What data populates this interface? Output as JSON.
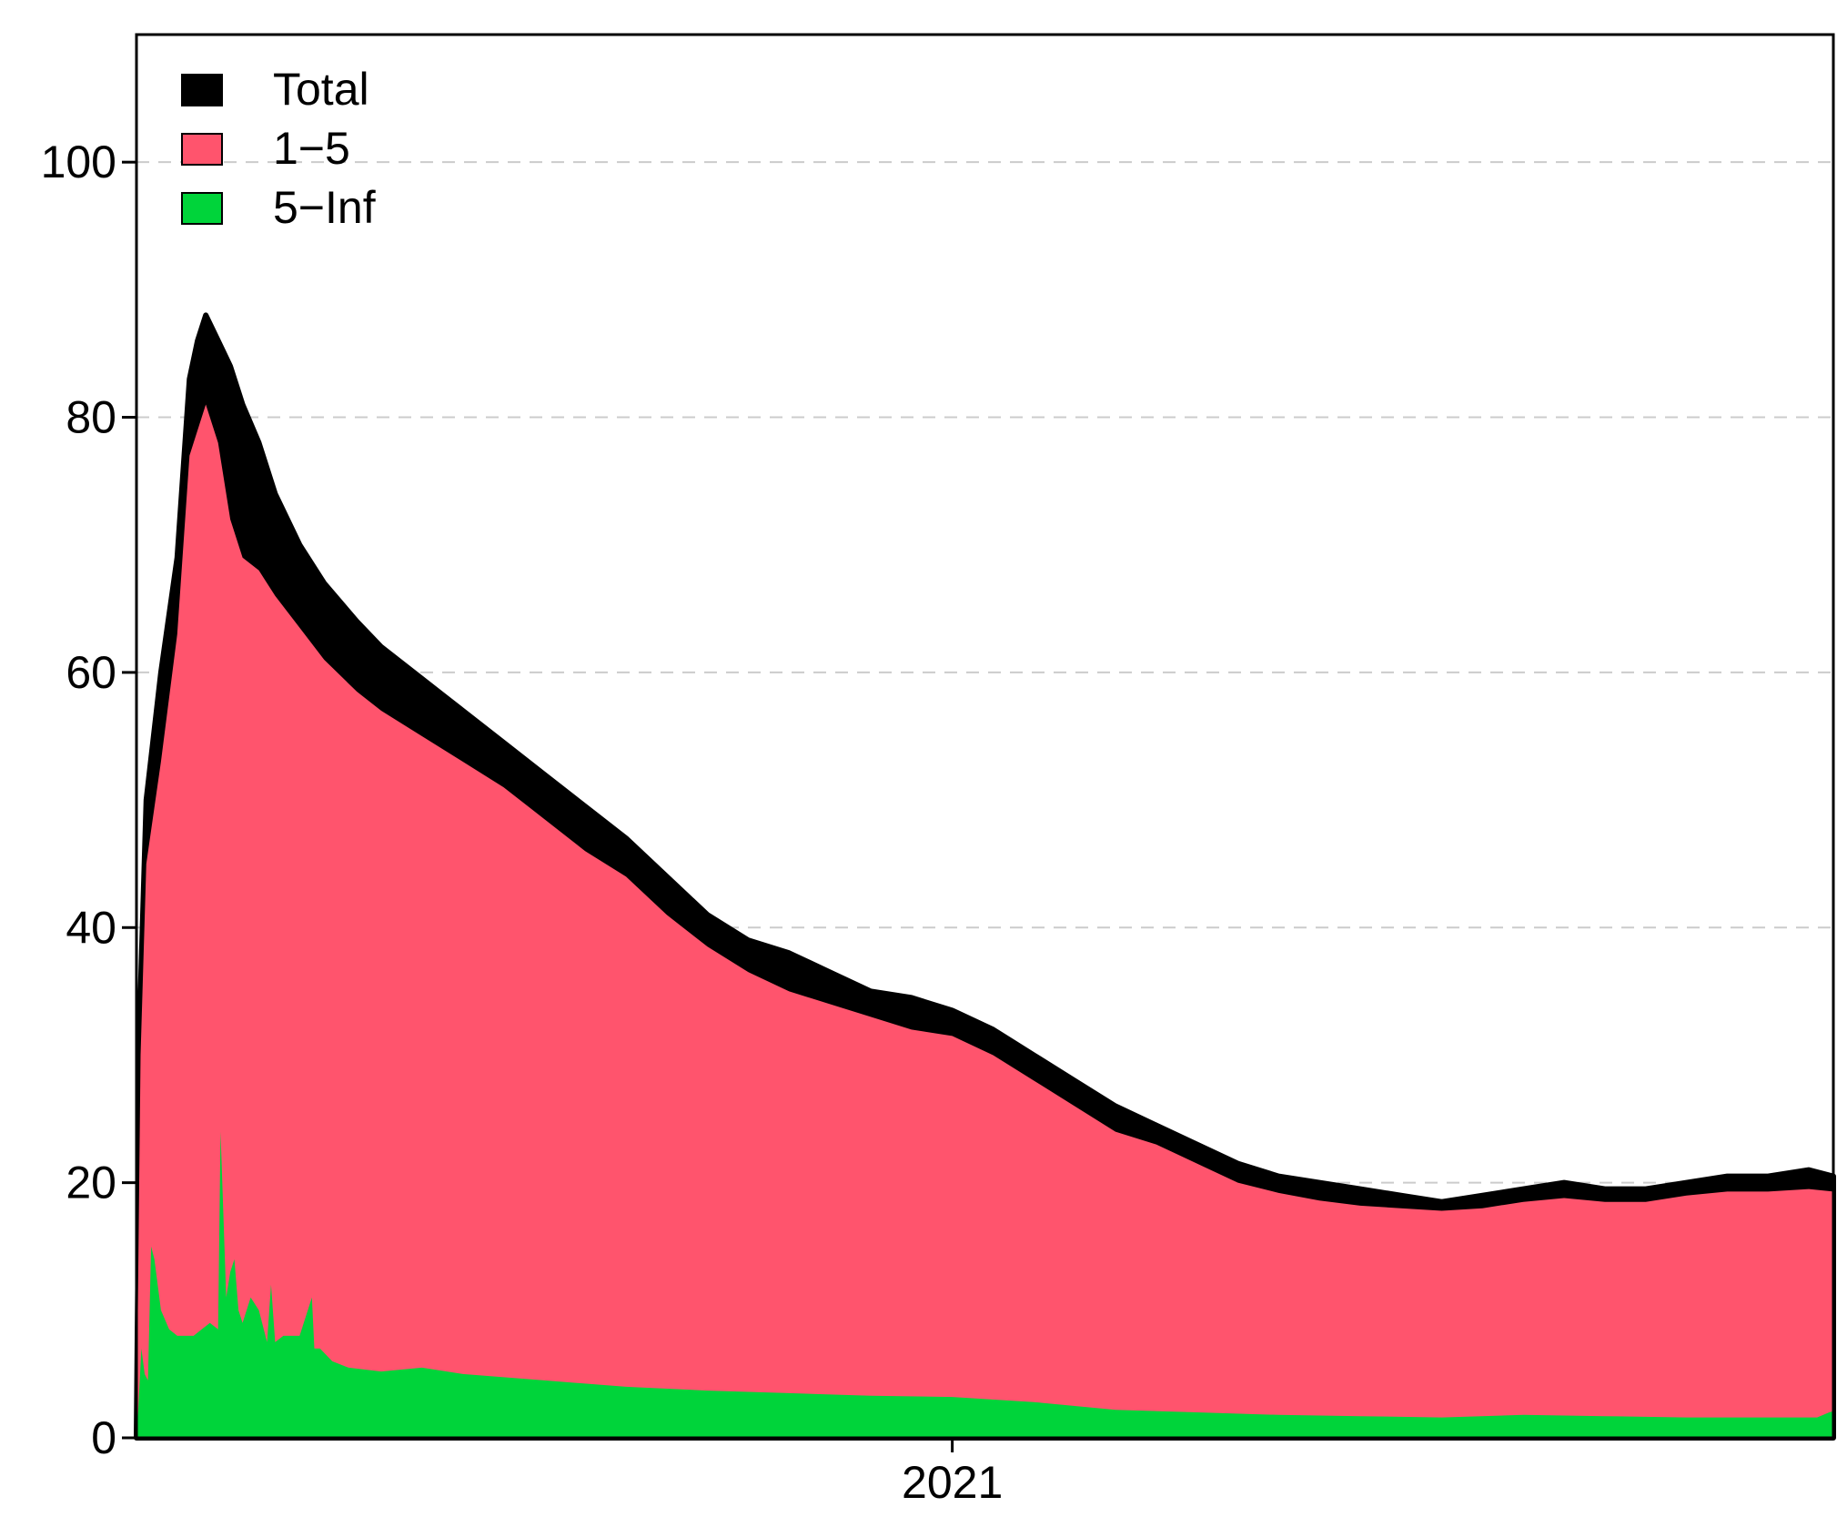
{
  "chart_data": {
    "type": "area",
    "stacked": false,
    "title": "",
    "xlabel": "",
    "ylabel": "",
    "ylim": [
      0,
      110
    ],
    "yticks": [
      0,
      20,
      40,
      60,
      80,
      100
    ],
    "xtick_labels": [
      "2021"
    ],
    "grid": "horizontal dashed",
    "legend": {
      "position": "top-left",
      "entries": [
        "Total",
        "1−5",
        "5−Inf"
      ]
    },
    "x_domain": [
      2020.0,
      2022.08
    ],
    "x_2021": 2021.0,
    "series": [
      {
        "name": "Total",
        "color": "#000000",
        "x": [
          2020.0,
          2020.005,
          2020.012,
          2020.03,
          2020.05,
          2020.065,
          2020.075,
          2020.085,
          2020.1,
          2020.115,
          2020.13,
          2020.15,
          2020.17,
          2020.2,
          2020.23,
          2020.27,
          2020.3,
          2020.35,
          2020.4,
          2020.45,
          2020.5,
          2020.55,
          2020.6,
          2020.65,
          2020.7,
          2020.75,
          2020.8,
          2020.85,
          2020.9,
          2020.95,
          2021.0,
          2021.05,
          2021.1,
          2021.15,
          2021.2,
          2021.25,
          2021.3,
          2021.35,
          2021.4,
          2021.45,
          2021.5,
          2021.55,
          2021.6,
          2021.65,
          2021.7,
          2021.75,
          2021.8,
          2021.85,
          2021.9,
          2021.95,
          2022.0,
          2022.05,
          2022.08
        ],
        "values": [
          0,
          35,
          50,
          60,
          69,
          83,
          86,
          88,
          86,
          84,
          81,
          78,
          74,
          70,
          67,
          64,
          62,
          59.5,
          57,
          54.5,
          52,
          49.5,
          47,
          44,
          41,
          39,
          38,
          36.5,
          35,
          34.5,
          33.5,
          32,
          30,
          28,
          26,
          24.5,
          23,
          21.5,
          20.5,
          20,
          19.5,
          19,
          18.5,
          19,
          19.5,
          20,
          19.5,
          19.5,
          20,
          20.5,
          20.5,
          21,
          20.5
        ]
      },
      {
        "name": "1−5",
        "color": "#ff546d",
        "x": [
          2020.0,
          2020.005,
          2020.012,
          2020.03,
          2020.05,
          2020.065,
          2020.075,
          2020.085,
          2020.1,
          2020.115,
          2020.13,
          2020.15,
          2020.17,
          2020.2,
          2020.23,
          2020.27,
          2020.3,
          2020.35,
          2020.4,
          2020.45,
          2020.5,
          2020.55,
          2020.6,
          2020.65,
          2020.7,
          2020.75,
          2020.8,
          2020.85,
          2020.9,
          2020.95,
          2021.0,
          2021.05,
          2021.1,
          2021.15,
          2021.2,
          2021.25,
          2021.3,
          2021.35,
          2021.4,
          2021.45,
          2021.5,
          2021.55,
          2021.6,
          2021.65,
          2021.7,
          2021.75,
          2021.8,
          2021.85,
          2021.9,
          2021.95,
          2022.0,
          2022.05,
          2022.08
        ],
        "values": [
          0,
          30,
          45,
          53,
          63,
          77,
          79,
          81,
          78,
          72,
          69,
          68,
          66,
          63.5,
          61,
          58.5,
          57,
          55,
          53,
          51,
          48.5,
          46,
          44,
          41,
          38.5,
          36.5,
          35,
          34,
          33,
          32,
          31.5,
          30,
          28,
          26,
          24,
          23,
          21.5,
          20,
          19.2,
          18.6,
          18.2,
          18,
          17.8,
          18,
          18.5,
          18.8,
          18.5,
          18.5,
          19,
          19.3,
          19.3,
          19.5,
          19.3
        ]
      },
      {
        "name": "5−Inf",
        "color": "#00d43a",
        "x": [
          2020.0,
          2020.002,
          2020.006,
          2020.01,
          2020.014,
          2020.018,
          2020.022,
          2020.03,
          2020.04,
          2020.05,
          2020.07,
          2020.08,
          2020.09,
          2020.1,
          2020.103,
          2020.11,
          2020.115,
          2020.12,
          2020.125,
          2020.13,
          2020.14,
          2020.15,
          2020.16,
          2020.165,
          2020.17,
          2020.18,
          2020.2,
          2020.215,
          2020.218,
          2020.225,
          2020.24,
          2020.26,
          2020.3,
          2020.35,
          2020.4,
          2020.5,
          2020.6,
          2020.7,
          2020.8,
          2020.9,
          2021.0,
          2021.1,
          2021.2,
          2021.3,
          2021.4,
          2021.5,
          2021.6,
          2021.7,
          2021.8,
          2021.9,
          2022.0,
          2022.06,
          2022.075,
          2022.08
        ],
        "values": [
          0,
          2,
          7,
          5,
          4.5,
          15,
          14,
          10,
          8.5,
          8,
          8,
          8.5,
          9,
          8.5,
          24,
          11,
          13,
          14,
          10,
          9,
          11,
          10,
          7.5,
          12,
          7.5,
          8,
          8,
          11,
          7,
          7,
          6,
          5.5,
          5.2,
          5.5,
          5,
          4.5,
          4,
          3.7,
          3.5,
          3.3,
          3.2,
          2.8,
          2.2,
          2.0,
          1.8,
          1.7,
          1.6,
          1.8,
          1.7,
          1.6,
          1.6,
          1.6,
          2.0,
          2.1
        ]
      }
    ]
  }
}
